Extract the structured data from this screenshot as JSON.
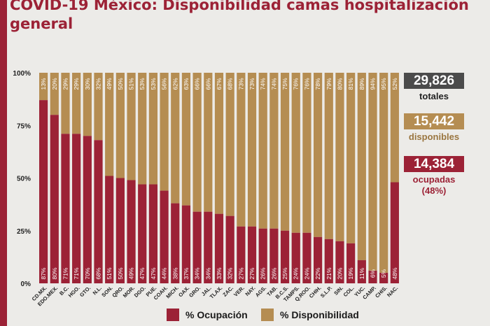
{
  "title": "COVID-19 México: Disponibilidad camas hospitalización general",
  "colors": {
    "ocupacion": "#9c2236",
    "disponibilidad": "#b58d52",
    "total": "#4b4b4b"
  },
  "stats": {
    "totales": {
      "value": "29,826",
      "label": "totales"
    },
    "disponibles": {
      "value": "15,442",
      "label": "disponibles"
    },
    "ocupadas": {
      "value": "14,384",
      "label": "ocupadas",
      "sub": "(48%)"
    }
  },
  "chart_data": {
    "type": "bar",
    "stacked": true,
    "categories": [
      "CD.MX.",
      "EDO.MEX.",
      "B.C.",
      "HGO.",
      "GTO.",
      "N.L.",
      "SON.",
      "QRO.",
      "MOR.",
      "DGO.",
      "PUE.",
      "COAH.",
      "MICH.",
      "OAX.",
      "GRO.",
      "JAL.",
      "TLAX.",
      "ZAC.",
      "VER.",
      "NAY.",
      "AGS.",
      "TAB.",
      "B.C.S.",
      "TAMPS.",
      "Q.ROO.",
      "CHIH.",
      "S.L.P.",
      "SIN.",
      "COL.",
      "YUC.",
      "CAMP.",
      "CHIS.",
      "NAC."
    ],
    "series": [
      {
        "name": "% Ocupación",
        "values": [
          87,
          80,
          71,
          71,
          70,
          68,
          51,
          50,
          49,
          47,
          47,
          44,
          38,
          37,
          34,
          34,
          33,
          32,
          27,
          27,
          26,
          26,
          25,
          24,
          24,
          22,
          21,
          20,
          19,
          11,
          6,
          5,
          48
        ]
      },
      {
        "name": "% Disponibilidad",
        "values": [
          13,
          20,
          29,
          29,
          30,
          32,
          49,
          50,
          51,
          53,
          53,
          56,
          62,
          63,
          66,
          66,
          67,
          68,
          73,
          73,
          74,
          74,
          75,
          76,
          76,
          78,
          79,
          80,
          81,
          89,
          94,
          95,
          52
        ]
      }
    ],
    "top_labels": [
      "13%",
      "20%",
      "29%",
      "29%",
      "30%",
      "32%",
      "49%",
      "50%",
      "51%",
      "53%",
      "53%",
      "56%",
      "62%",
      "63%",
      "66%",
      "66%",
      "67%",
      "68%",
      "73%",
      "73%",
      "74%",
      "74%",
      "75%",
      "76%",
      "76%",
      "78%",
      "79%",
      "80%",
      "81%",
      "89%",
      "94%",
      "95%",
      "52%"
    ],
    "bottom_labels": [
      "87%",
      "80%",
      "71%",
      "71%",
      "70%",
      "68%",
      "51%",
      "50%",
      "49%",
      "47%",
      "47%",
      "44%",
      "38%",
      "37%",
      "34%",
      "34%",
      "33%",
      "32%",
      "27%",
      "27%",
      "26%",
      "26%",
      "25%",
      "24%",
      "24%",
      "22%",
      "21%",
      "20%",
      "19%",
      "11%",
      "6%",
      "5%",
      "48%"
    ],
    "yticks": [
      "0%",
      "25%",
      "50%",
      "75%",
      "100%"
    ],
    "ytick_values": [
      0,
      25,
      50,
      75,
      100
    ],
    "ylim": [
      0,
      100
    ],
    "legend": [
      {
        "label": "% Ocupación"
      },
      {
        "label": "% Disponibilidad"
      }
    ],
    "legend_position": "bottom"
  }
}
